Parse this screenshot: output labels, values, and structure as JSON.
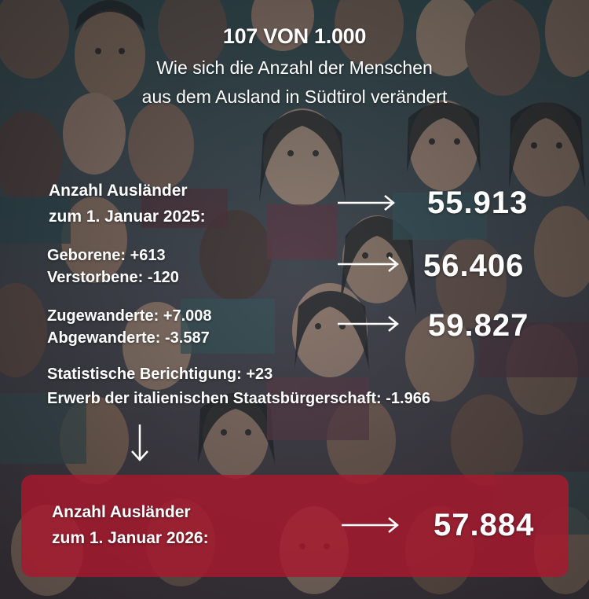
{
  "headline": "107 VON 1.000",
  "subtitle": [
    "Wie sich die Anzahl der Menschen",
    "aus dem Ausland in Südtirol verändert"
  ],
  "start": {
    "label_lines": [
      "Anzahl Ausländer",
      "zum 1. Januar 2025:"
    ],
    "value": "55.913"
  },
  "natural": {
    "lines": [
      "Geborene: +613",
      "Verstorbene: -120"
    ],
    "value": "56.406"
  },
  "migration": {
    "lines": [
      "Zugewanderte: +7.008",
      "Abgewanderte: -3.587"
    ],
    "value": "59.827"
  },
  "adjustments": {
    "lines": [
      "Statistische Berichtigung: +23",
      "Erwerb der italienischen Staatsbürgerschaft: -1.966"
    ]
  },
  "result": {
    "label_lines": [
      "Anzahl Ausländer",
      "zum 1. Januar 2026:"
    ],
    "value": "57.884"
  },
  "colors": {
    "panel": "#a8192d",
    "text": "#ffffff",
    "background": "#4a5a5f"
  },
  "icons": [
    "arrow-right-icon",
    "arrow-down-icon"
  ]
}
